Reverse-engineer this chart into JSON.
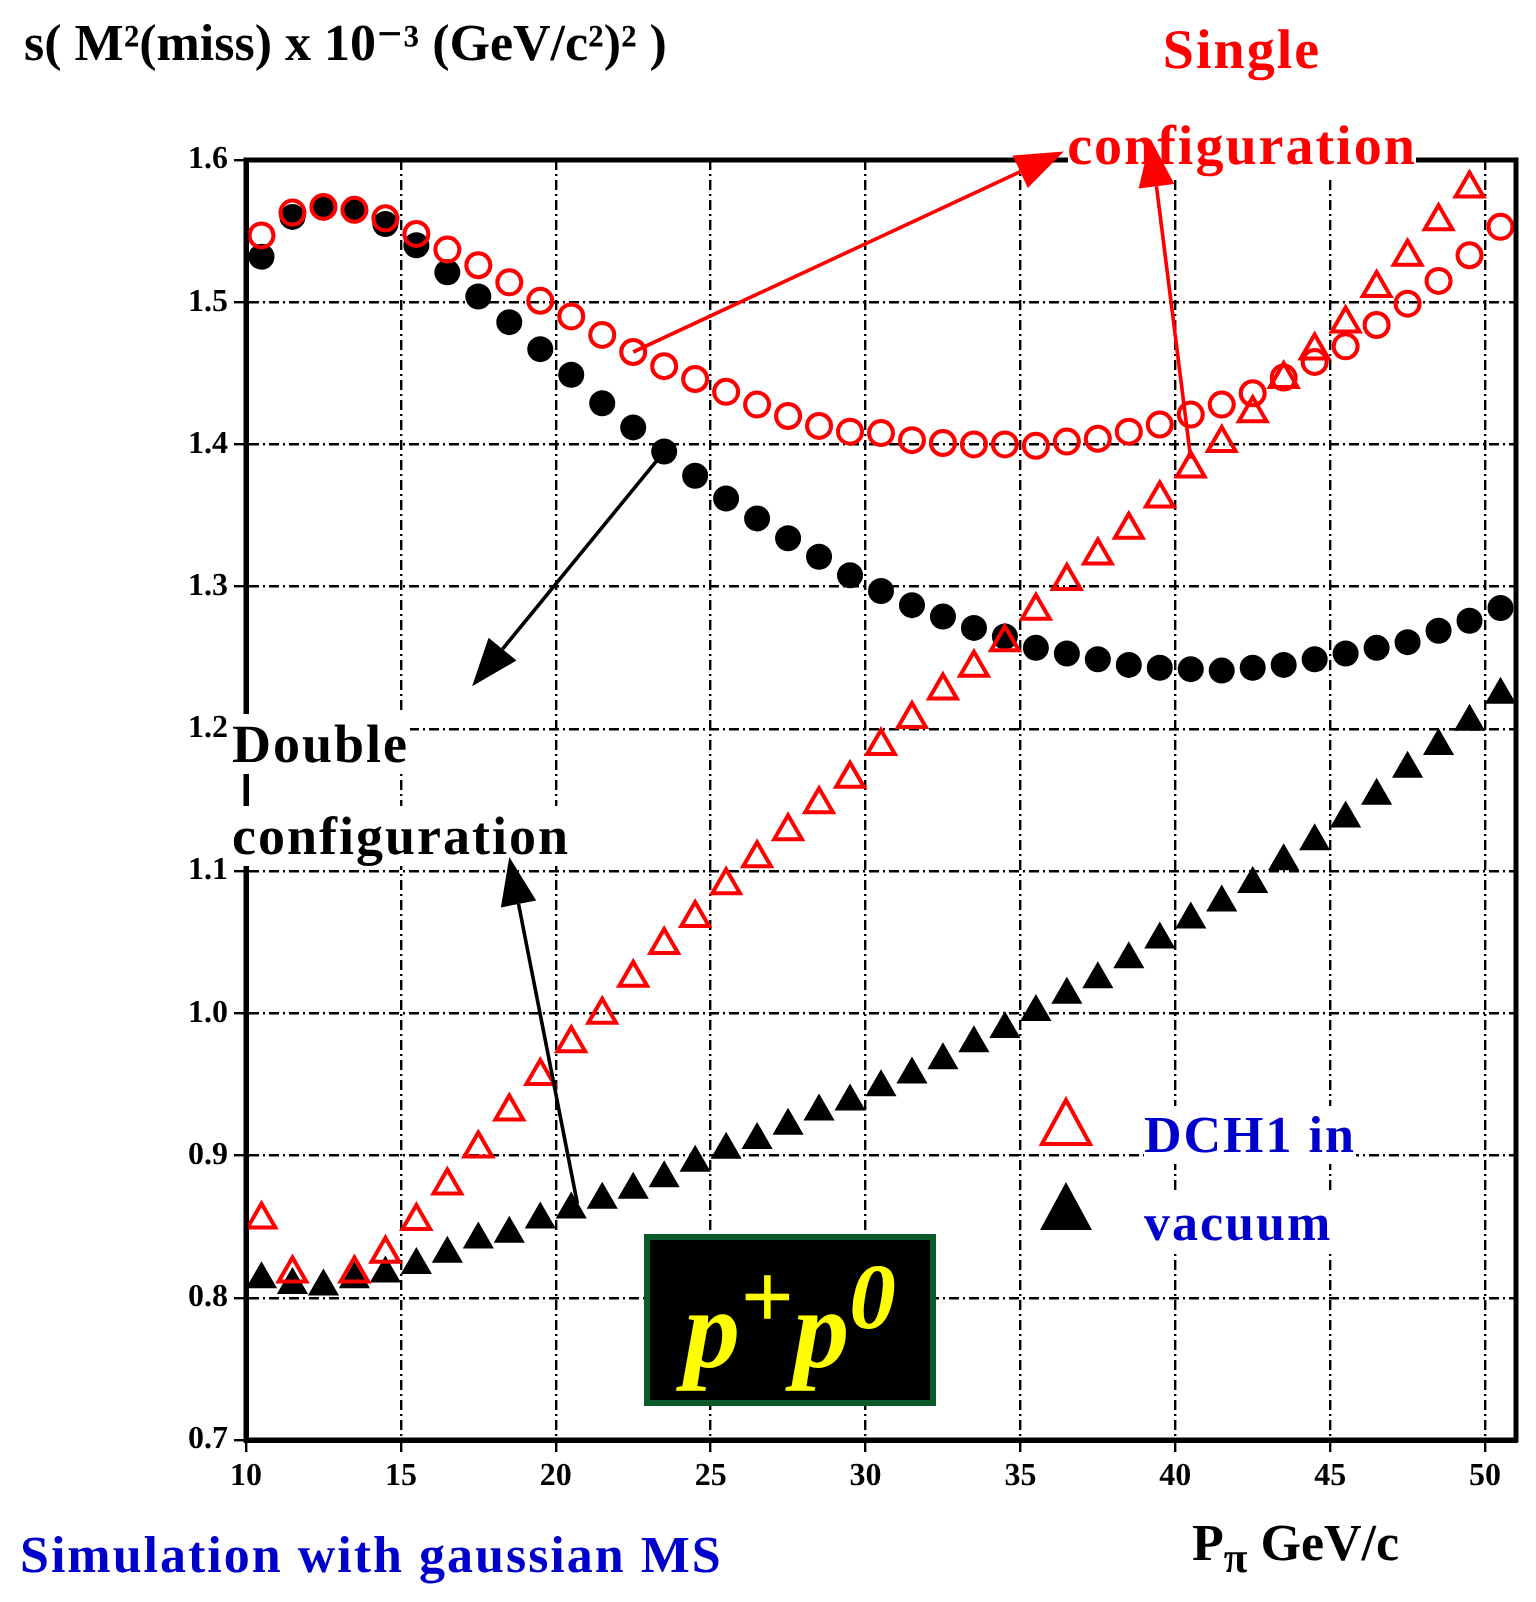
{
  "chart_data": {
    "type": "scatter",
    "ylabel": "s( M²(miss) x 10⁻³ (GeV/c²)² )",
    "xlabel": "P$_{π}$ GeV/c",
    "x": [
      10.5,
      11.5,
      12.5,
      13.5,
      14.5,
      15.5,
      16.5,
      17.5,
      18.5,
      19.5,
      20.5,
      21.5,
      22.5,
      23.5,
      24.5,
      25.5,
      26.5,
      27.5,
      28.5,
      29.5,
      30.5,
      31.5,
      32.5,
      33.5,
      34.5,
      35.5,
      36.5,
      37.5,
      38.5,
      39.5,
      40.5,
      41.5,
      42.5,
      43.5,
      44.5,
      45.5,
      46.5,
      47.5,
      48.5,
      49.5,
      50.5
    ],
    "series": [
      {
        "color": "#ff0000",
        "marker": "circle",
        "values": [
          1.547,
          1.563,
          1.567,
          1.565,
          1.559,
          1.548,
          1.537,
          1.526,
          1.514,
          1.501,
          1.49,
          1.477,
          1.465,
          1.455,
          1.446,
          1.437,
          1.428,
          1.42,
          1.413,
          1.409,
          1.408,
          1.403,
          1.401,
          1.4,
          1.4,
          1.399,
          1.402,
          1.404,
          1.409,
          1.414,
          1.421,
          1.428,
          1.436,
          1.447,
          1.458,
          1.469,
          1.484,
          1.499,
          1.515,
          1.533,
          1.553
        ]
      },
      {
        "color": "#000000",
        "marker": "circle",
        "values": [
          1.532,
          1.56,
          1.567,
          1.565,
          1.555,
          1.54,
          1.521,
          1.504,
          1.486,
          1.467,
          1.449,
          1.429,
          1.412,
          1.395,
          1.378,
          1.362,
          1.348,
          1.334,
          1.321,
          1.308,
          1.297,
          1.287,
          1.279,
          1.271,
          1.265,
          1.257,
          1.253,
          1.249,
          1.245,
          1.243,
          1.242,
          1.241,
          1.243,
          1.245,
          1.249,
          1.253,
          1.257,
          1.261,
          1.269,
          1.276,
          1.285
        ]
      },
      {
        "color": "#ff0000",
        "marker": "triangle",
        "values": [
          0.855,
          0.817,
          null,
          0.817,
          0.831,
          0.854,
          0.879,
          0.905,
          0.931,
          0.956,
          0.979,
          0.999,
          1.025,
          1.048,
          1.067,
          1.09,
          1.109,
          1.128,
          1.147,
          1.165,
          1.188,
          1.207,
          1.227,
          1.243,
          1.261,
          1.283,
          1.304,
          1.322,
          1.34,
          1.362,
          1.383,
          1.401,
          1.422,
          1.446,
          1.466,
          1.485,
          1.51,
          1.532,
          1.557,
          1.58,
          null
        ]
      },
      {
        "color": "#000000",
        "marker": "triangle",
        "values": [
          0.813,
          0.809,
          0.808,
          0.813,
          0.817,
          0.823,
          0.831,
          0.841,
          0.845,
          0.855,
          0.862,
          0.869,
          0.876,
          0.884,
          0.895,
          0.904,
          0.911,
          0.921,
          0.931,
          0.938,
          0.948,
          0.957,
          0.967,
          0.979,
          0.989,
          1.001,
          1.013,
          1.024,
          1.038,
          1.052,
          1.066,
          1.078,
          1.091,
          1.107,
          1.121,
          1.137,
          1.153,
          1.172,
          1.188,
          1.205,
          1.224
        ]
      }
    ],
    "xlim": [
      10,
      51
    ],
    "xticks": [
      10,
      15,
      20,
      25,
      30,
      35,
      40,
      45,
      50
    ],
    "ylim": [
      0.7,
      1.6
    ],
    "yticks": [
      0.7,
      0.8,
      0.9,
      {
        "value": 1,
        "label": "1.0"
      },
      1.1,
      1.2,
      1.3,
      1.4,
      1.5,
      1.6
    ],
    "grid": true,
    "legend": false,
    "annotations": [
      {
        "text": "Single configuration",
        "x": 22.5,
        "y": 1.465
      },
      {
        "text": "Double configuration",
        "x": 23.5,
        "y": 1.395
      },
      "DCH1 in vacuum",
      "p$^{+}$p$^{0}$",
      "Simulation with gaussian MS"
    ]
  }
}
